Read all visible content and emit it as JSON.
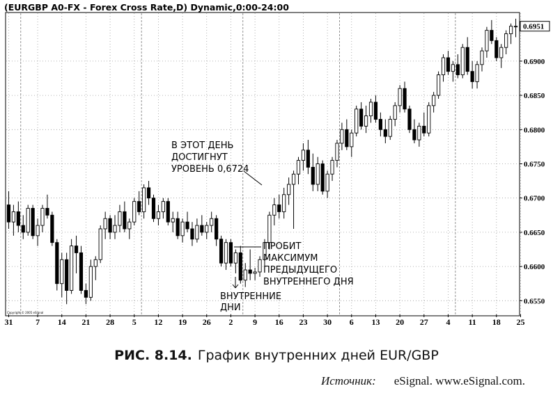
{
  "chart_data": {
    "type": "candlestick",
    "title": "(EURGBP A0-FX - Forex Cross Rate,D) Dynamic,0:00-24:00",
    "copyright": "Copyright © 2005 eSignal",
    "ylim": [
      0.653,
      0.697
    ],
    "y_ticks": [
      0.655,
      0.66,
      0.665,
      0.67,
      0.675,
      0.68,
      0.685,
      0.69
    ],
    "y_tick_labels": [
      "0.6550",
      "0.6600",
      "0.6650",
      "0.6700",
      "0.6750",
      "0.6800",
      "0.6850",
      "0.6900"
    ],
    "last_price": 0.6951,
    "last_price_label": "0.6951",
    "x_tick_labels": [
      "31",
      "7",
      "14",
      "21",
      "28",
      "5",
      "12",
      "19",
      "26",
      "2",
      "9",
      "16",
      "23",
      "30",
      "6",
      "13",
      "20",
      "27",
      "4",
      "11",
      "18",
      "25"
    ],
    "x_tick_index": [
      0,
      6,
      11,
      16,
      21,
      26,
      31,
      36,
      41,
      46,
      51,
      56,
      61,
      66,
      71,
      76,
      81,
      86,
      91,
      96,
      101,
      106
    ],
    "month_separators": [
      3,
      28,
      49,
      69,
      93
    ],
    "ohlc": [
      [
        0.669,
        0.671,
        0.6655,
        0.6665
      ],
      [
        0.6665,
        0.669,
        0.6645,
        0.668
      ],
      [
        0.668,
        0.6695,
        0.665,
        0.666
      ],
      [
        0.666,
        0.6675,
        0.664,
        0.665
      ],
      [
        0.665,
        0.669,
        0.6645,
        0.6685
      ],
      [
        0.6685,
        0.669,
        0.664,
        0.6645
      ],
      [
        0.6645,
        0.667,
        0.663,
        0.666
      ],
      [
        0.666,
        0.669,
        0.665,
        0.6685
      ],
      [
        0.6685,
        0.6705,
        0.667,
        0.6675
      ],
      [
        0.6675,
        0.668,
        0.663,
        0.6635
      ],
      [
        0.6635,
        0.664,
        0.6565,
        0.6575
      ],
      [
        0.6575,
        0.662,
        0.6555,
        0.661
      ],
      [
        0.661,
        0.662,
        0.6545,
        0.6565
      ],
      [
        0.6565,
        0.664,
        0.656,
        0.663
      ],
      [
        0.663,
        0.6645,
        0.659,
        0.662
      ],
      [
        0.662,
        0.663,
        0.656,
        0.6565
      ],
      [
        0.6565,
        0.6575,
        0.6545,
        0.6555
      ],
      [
        0.6555,
        0.661,
        0.655,
        0.66
      ],
      [
        0.66,
        0.6615,
        0.658,
        0.661
      ],
      [
        0.661,
        0.666,
        0.6605,
        0.6655
      ],
      [
        0.6655,
        0.668,
        0.664,
        0.667
      ],
      [
        0.667,
        0.6675,
        0.664,
        0.665
      ],
      [
        0.665,
        0.6675,
        0.664,
        0.666
      ],
      [
        0.666,
        0.669,
        0.665,
        0.668
      ],
      [
        0.668,
        0.6695,
        0.665,
        0.6655
      ],
      [
        0.6655,
        0.667,
        0.664,
        0.6665
      ],
      [
        0.6665,
        0.67,
        0.666,
        0.6695
      ],
      [
        0.6695,
        0.671,
        0.6675,
        0.668
      ],
      [
        0.668,
        0.672,
        0.667,
        0.6715
      ],
      [
        0.6715,
        0.6725,
        0.669,
        0.67
      ],
      [
        0.67,
        0.6705,
        0.6665,
        0.667
      ],
      [
        0.667,
        0.669,
        0.666,
        0.668
      ],
      [
        0.668,
        0.67,
        0.667,
        0.6695
      ],
      [
        0.6695,
        0.67,
        0.666,
        0.6665
      ],
      [
        0.6665,
        0.668,
        0.665,
        0.667
      ],
      [
        0.667,
        0.668,
        0.664,
        0.6645
      ],
      [
        0.6645,
        0.667,
        0.6635,
        0.6665
      ],
      [
        0.6665,
        0.668,
        0.665,
        0.6655
      ],
      [
        0.6655,
        0.6665,
        0.663,
        0.664
      ],
      [
        0.664,
        0.667,
        0.6635,
        0.666
      ],
      [
        0.666,
        0.6675,
        0.6645,
        0.665
      ],
      [
        0.665,
        0.6665,
        0.664,
        0.666
      ],
      [
        0.666,
        0.668,
        0.665,
        0.667
      ],
      [
        0.667,
        0.6675,
        0.663,
        0.664
      ],
      [
        0.664,
        0.6645,
        0.66,
        0.6605
      ],
      [
        0.6605,
        0.664,
        0.6595,
        0.6635
      ],
      [
        0.6635,
        0.664,
        0.66,
        0.6605
      ],
      [
        0.6605,
        0.6625,
        0.659,
        0.662
      ],
      [
        0.662,
        0.663,
        0.6575,
        0.658
      ],
      [
        0.658,
        0.6605,
        0.657,
        0.6595
      ],
      [
        0.6595,
        0.6625,
        0.658,
        0.659
      ],
      [
        0.659,
        0.6598,
        0.658,
        0.6592
      ],
      [
        0.6592,
        0.6615,
        0.6585,
        0.661
      ],
      [
        0.661,
        0.664,
        0.66,
        0.6635
      ],
      [
        0.6635,
        0.668,
        0.6625,
        0.6675
      ],
      [
        0.6675,
        0.67,
        0.666,
        0.669
      ],
      [
        0.669,
        0.6705,
        0.667,
        0.668
      ],
      [
        0.668,
        0.6715,
        0.667,
        0.6705
      ],
      [
        0.6705,
        0.673,
        0.669,
        0.672
      ],
      [
        0.672,
        0.674,
        0.6655,
        0.6735
      ],
      [
        0.6735,
        0.676,
        0.672,
        0.6755
      ],
      [
        0.6755,
        0.678,
        0.674,
        0.677
      ],
      [
        0.677,
        0.6785,
        0.6735,
        0.6745
      ],
      [
        0.6745,
        0.6765,
        0.671,
        0.672
      ],
      [
        0.672,
        0.676,
        0.671,
        0.675
      ],
      [
        0.675,
        0.6755,
        0.6705,
        0.671
      ],
      [
        0.671,
        0.674,
        0.67,
        0.6735
      ],
      [
        0.6735,
        0.676,
        0.6725,
        0.6755
      ],
      [
        0.6755,
        0.6785,
        0.6745,
        0.678
      ],
      [
        0.678,
        0.681,
        0.677,
        0.68
      ],
      [
        0.68,
        0.6815,
        0.677,
        0.6775
      ],
      [
        0.6775,
        0.68,
        0.676,
        0.6795
      ],
      [
        0.6795,
        0.6835,
        0.679,
        0.683
      ],
      [
        0.683,
        0.684,
        0.68,
        0.6805
      ],
      [
        0.6805,
        0.6835,
        0.6795,
        0.682
      ],
      [
        0.682,
        0.6845,
        0.681,
        0.684
      ],
      [
        0.684,
        0.685,
        0.681,
        0.6815
      ],
      [
        0.6815,
        0.6825,
        0.679,
        0.68
      ],
      [
        0.68,
        0.6815,
        0.678,
        0.679
      ],
      [
        0.679,
        0.682,
        0.6785,
        0.6815
      ],
      [
        0.6815,
        0.684,
        0.6805,
        0.6835
      ],
      [
        0.6835,
        0.6865,
        0.6825,
        0.686
      ],
      [
        0.686,
        0.687,
        0.6825,
        0.683
      ],
      [
        0.683,
        0.6835,
        0.6795,
        0.68
      ],
      [
        0.68,
        0.6815,
        0.678,
        0.6785
      ],
      [
        0.6785,
        0.681,
        0.6775,
        0.6805
      ],
      [
        0.6805,
        0.6825,
        0.679,
        0.6795
      ],
      [
        0.6795,
        0.684,
        0.679,
        0.6835
      ],
      [
        0.6835,
        0.6855,
        0.6825,
        0.685
      ],
      [
        0.685,
        0.6885,
        0.6845,
        0.688
      ],
      [
        0.688,
        0.691,
        0.687,
        0.6905
      ],
      [
        0.6905,
        0.6915,
        0.688,
        0.6885
      ],
      [
        0.6885,
        0.69,
        0.687,
        0.6895
      ],
      [
        0.6895,
        0.691,
        0.6875,
        0.688
      ],
      [
        0.688,
        0.6925,
        0.6875,
        0.692
      ],
      [
        0.692,
        0.6935,
        0.688,
        0.6885
      ],
      [
        0.6885,
        0.69,
        0.686,
        0.687
      ],
      [
        0.687,
        0.69,
        0.686,
        0.6895
      ],
      [
        0.6895,
        0.692,
        0.6885,
        0.6915
      ],
      [
        0.6915,
        0.695,
        0.6905,
        0.6945
      ],
      [
        0.6945,
        0.696,
        0.6925,
        0.693
      ],
      [
        0.693,
        0.6935,
        0.69,
        0.6905
      ],
      [
        0.6905,
        0.6925,
        0.689,
        0.692
      ],
      [
        0.692,
        0.6945,
        0.691,
        0.694
      ],
      [
        0.694,
        0.6955,
        0.6925,
        0.6951
      ],
      [
        0.6951,
        0.6962,
        0.6935,
        0.6951
      ]
    ],
    "annotations": {
      "level": [
        "В ЭТОТ ДЕНЬ",
        "ДОСТИГНУТ",
        "УРОВЕНЬ 0,6724"
      ],
      "breakout": [
        "ПРОБИТ",
        "МАКСИМУМ",
        "ПРЕДЫДУЩЕГО",
        "ВНУТРЕННЕГО ДНЯ"
      ],
      "inside": [
        "ВНУТРЕННИЕ",
        "ДНИ"
      ]
    }
  },
  "caption": {
    "number": "РИС. 8.14.",
    "text": "График внутренних дней EUR/GBP"
  },
  "source": {
    "label": "Источник:",
    "text": "eSignal. www.eSignal.com."
  }
}
